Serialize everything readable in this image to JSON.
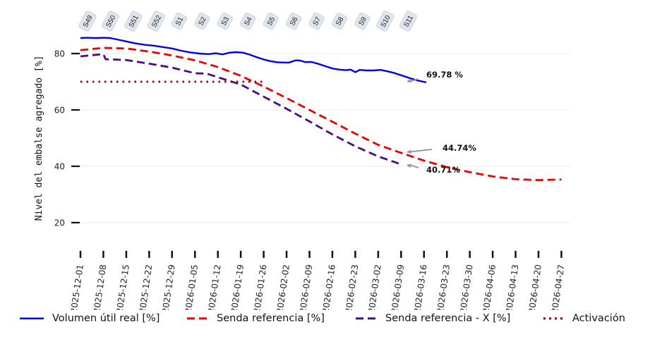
{
  "chart_data": {
    "type": "line",
    "title": "",
    "xlabel": "",
    "ylabel": "Nivel del embalse agregado [%]",
    "ylim": [
      10,
      88
    ],
    "yticks": [
      20,
      40,
      60,
      80
    ],
    "grid": true,
    "legend_position": "bottom",
    "x_ticks": [
      "2025-12-01",
      "2025-12-08",
      "2025-12-15",
      "2025-12-22",
      "2025-12-29",
      "2026-01-05",
      "2026-01-12",
      "2026-01-19",
      "2026-01-26",
      "2026-02-02",
      "2026-02-09",
      "2026-02-16",
      "2026-02-23",
      "2026-03-02",
      "2026-03-09",
      "2026-03-16",
      "2026-03-23",
      "2026-03-30",
      "2026-04-06",
      "2026-04-13",
      "2026-04-20",
      "2026-04-27"
    ],
    "week_labels": [
      "S49",
      "S50",
      "S51",
      "S52",
      "S1",
      "S2",
      "S3",
      "S4",
      "S5",
      "S6",
      "S7",
      "S8",
      "S9",
      "S10",
      "S11"
    ],
    "series": [
      {
        "name": "Volumen útil real [%]",
        "color": "#0000ee",
        "style": "solid",
        "points": [
          [
            0,
            85.5
          ],
          [
            0.3,
            85.6
          ],
          [
            0.7,
            85.5
          ],
          [
            1.0,
            85.6
          ],
          [
            1.3,
            85.5
          ],
          [
            1.6,
            85.0
          ],
          [
            2.0,
            84.3
          ],
          [
            2.4,
            83.6
          ],
          [
            2.8,
            83.1
          ],
          [
            3.2,
            82.8
          ],
          [
            3.6,
            82.3
          ],
          [
            4.0,
            81.8
          ],
          [
            4.4,
            81.0
          ],
          [
            4.8,
            80.4
          ],
          [
            5.2,
            80.0
          ],
          [
            5.6,
            79.8
          ],
          [
            5.9,
            80.1
          ],
          [
            6.2,
            79.7
          ],
          [
            6.5,
            80.3
          ],
          [
            6.8,
            80.5
          ],
          [
            7.1,
            80.3
          ],
          [
            7.4,
            79.6
          ],
          [
            7.7,
            78.7
          ],
          [
            8.0,
            77.9
          ],
          [
            8.3,
            77.3
          ],
          [
            8.6,
            76.9
          ],
          [
            8.9,
            76.8
          ],
          [
            9.1,
            76.8
          ],
          [
            9.4,
            77.6
          ],
          [
            9.6,
            77.5
          ],
          [
            9.8,
            77.0
          ],
          [
            10.1,
            77.0
          ],
          [
            10.4,
            76.3
          ],
          [
            10.7,
            75.5
          ],
          [
            11.0,
            74.7
          ],
          [
            11.3,
            74.3
          ],
          [
            11.6,
            74.1
          ],
          [
            11.8,
            74.3
          ],
          [
            12.0,
            73.4
          ],
          [
            12.2,
            74.2
          ],
          [
            12.5,
            74.0
          ],
          [
            12.8,
            74.0
          ],
          [
            13.1,
            74.2
          ],
          [
            13.4,
            73.7
          ],
          [
            13.7,
            73.1
          ],
          [
            14.0,
            72.3
          ],
          [
            14.3,
            71.5
          ],
          [
            14.6,
            70.7
          ],
          [
            14.8,
            70.3
          ],
          [
            15.1,
            69.78
          ]
        ]
      },
      {
        "name": "Senda referencia [%]",
        "color": "#ee0000",
        "style": "dashed",
        "points": [
          [
            0,
            81.2
          ],
          [
            1,
            82.0
          ],
          [
            2,
            81.8
          ],
          [
            3,
            80.7
          ],
          [
            4,
            79.3
          ],
          [
            5,
            77.6
          ],
          [
            6,
            75.2
          ],
          [
            7,
            72.1
          ],
          [
            8,
            68.3
          ],
          [
            9,
            64.2
          ],
          [
            10,
            60.0
          ],
          [
            11,
            55.8
          ],
          [
            12,
            51.6
          ],
          [
            13,
            47.6
          ],
          [
            14,
            44.74
          ],
          [
            15,
            42.0
          ],
          [
            16,
            39.7
          ],
          [
            17,
            37.9
          ],
          [
            18,
            36.4
          ],
          [
            19,
            35.4
          ],
          [
            20,
            35.1
          ],
          [
            21,
            35.3
          ]
        ]
      },
      {
        "name": "Senda referencia - X [%]",
        "color": "#4b0a8a",
        "style": "dashed",
        "points": [
          [
            0,
            79.0
          ],
          [
            1,
            79.8
          ],
          [
            1.1,
            78.0
          ],
          [
            2,
            77.7
          ],
          [
            3,
            76.4
          ],
          [
            4,
            75.0
          ],
          [
            5,
            73.0
          ],
          [
            5.5,
            72.9
          ],
          [
            6,
            71.6
          ],
          [
            7,
            69.0
          ],
          [
            8,
            64.7
          ],
          [
            9,
            60.4
          ],
          [
            10,
            55.9
          ],
          [
            11,
            51.3
          ],
          [
            12,
            47.1
          ],
          [
            13,
            43.5
          ],
          [
            14,
            40.71
          ]
        ]
      },
      {
        "name": "Activación",
        "color": "#8b0000",
        "style": "dotted",
        "points": [
          [
            0,
            70
          ],
          [
            8,
            70
          ]
        ]
      }
    ],
    "annotations": [
      {
        "text": "69.78 %",
        "target_series": "Volumen útil real [%]",
        "target_value": 69.78
      },
      {
        "text": "44.74%",
        "target_series": "Senda referencia [%]",
        "target_value": 44.74
      },
      {
        "text": "40.71%",
        "target_series": "Senda referencia - X [%]",
        "target_value": 40.71
      }
    ]
  },
  "legend": {
    "items": [
      {
        "label": "Volumen útil real [%]",
        "color": "#0000ee",
        "style": "solid"
      },
      {
        "label": "Senda referencia [%]",
        "color": "#ee0000",
        "style": "dashed"
      },
      {
        "label": "Senda referencia - X [%]",
        "color": "#4b0a8a",
        "style": "dashed"
      },
      {
        "label": "Activación",
        "color": "#8b0000",
        "style": "dotted"
      }
    ]
  }
}
